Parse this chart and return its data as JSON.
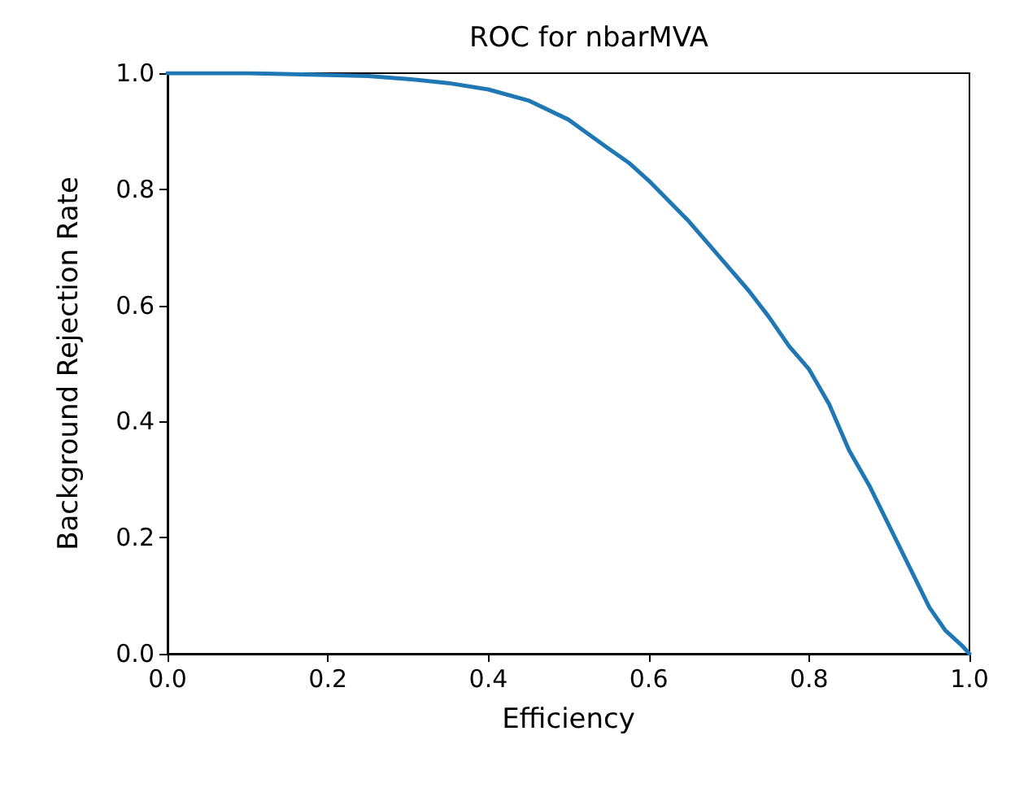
{
  "chart_data": {
    "type": "line",
    "title": "ROC for nbarMVA",
    "xlabel": "Efficiency",
    "ylabel": "Background Rejection Rate",
    "x": [
      0,
      0.1,
      0.2,
      0.25,
      0.3,
      0.35,
      0.4,
      0.45,
      0.5,
      0.525,
      0.55,
      0.575,
      0.6,
      0.625,
      0.65,
      0.675,
      0.7,
      0.725,
      0.75,
      0.775,
      0.8,
      0.825,
      0.85,
      0.875,
      0.9,
      0.925,
      0.95,
      0.97,
      0.99,
      1.0
    ],
    "series": [
      {
        "color": "#1f77b4",
        "values": [
          1.0,
          1.0,
          0.997,
          0.995,
          0.99,
          0.983,
          0.972,
          0.953,
          0.92,
          0.895,
          0.87,
          0.846,
          0.815,
          0.78,
          0.745,
          0.705,
          0.665,
          0.625,
          0.58,
          0.53,
          0.49,
          0.43,
          0.35,
          0.29,
          0.22,
          0.15,
          0.08,
          0.04,
          0.015,
          0.0
        ]
      }
    ],
    "xlim": [
      0,
      1
    ],
    "ylim": [
      0,
      1
    ],
    "xticks": [
      {
        "value": 0,
        "label": "0.0"
      },
      {
        "value": 0.2,
        "label": "0.2"
      },
      {
        "value": 0.4,
        "label": "0.4"
      },
      {
        "value": 0.6,
        "label": "0.6"
      },
      {
        "value": 0.8,
        "label": "0.8"
      },
      {
        "value": 1,
        "label": "1.0"
      }
    ],
    "yticks": [
      {
        "value": 0,
        "label": "0.0"
      },
      {
        "value": 0.2,
        "label": "0.2"
      },
      {
        "value": 0.4,
        "label": "0.4"
      },
      {
        "value": 0.6,
        "label": "0.6"
      },
      {
        "value": 0.8,
        "label": "0.8"
      },
      {
        "value": 1,
        "label": "1.0"
      }
    ],
    "grid": false,
    "marker": "none",
    "line_style": "solid"
  }
}
